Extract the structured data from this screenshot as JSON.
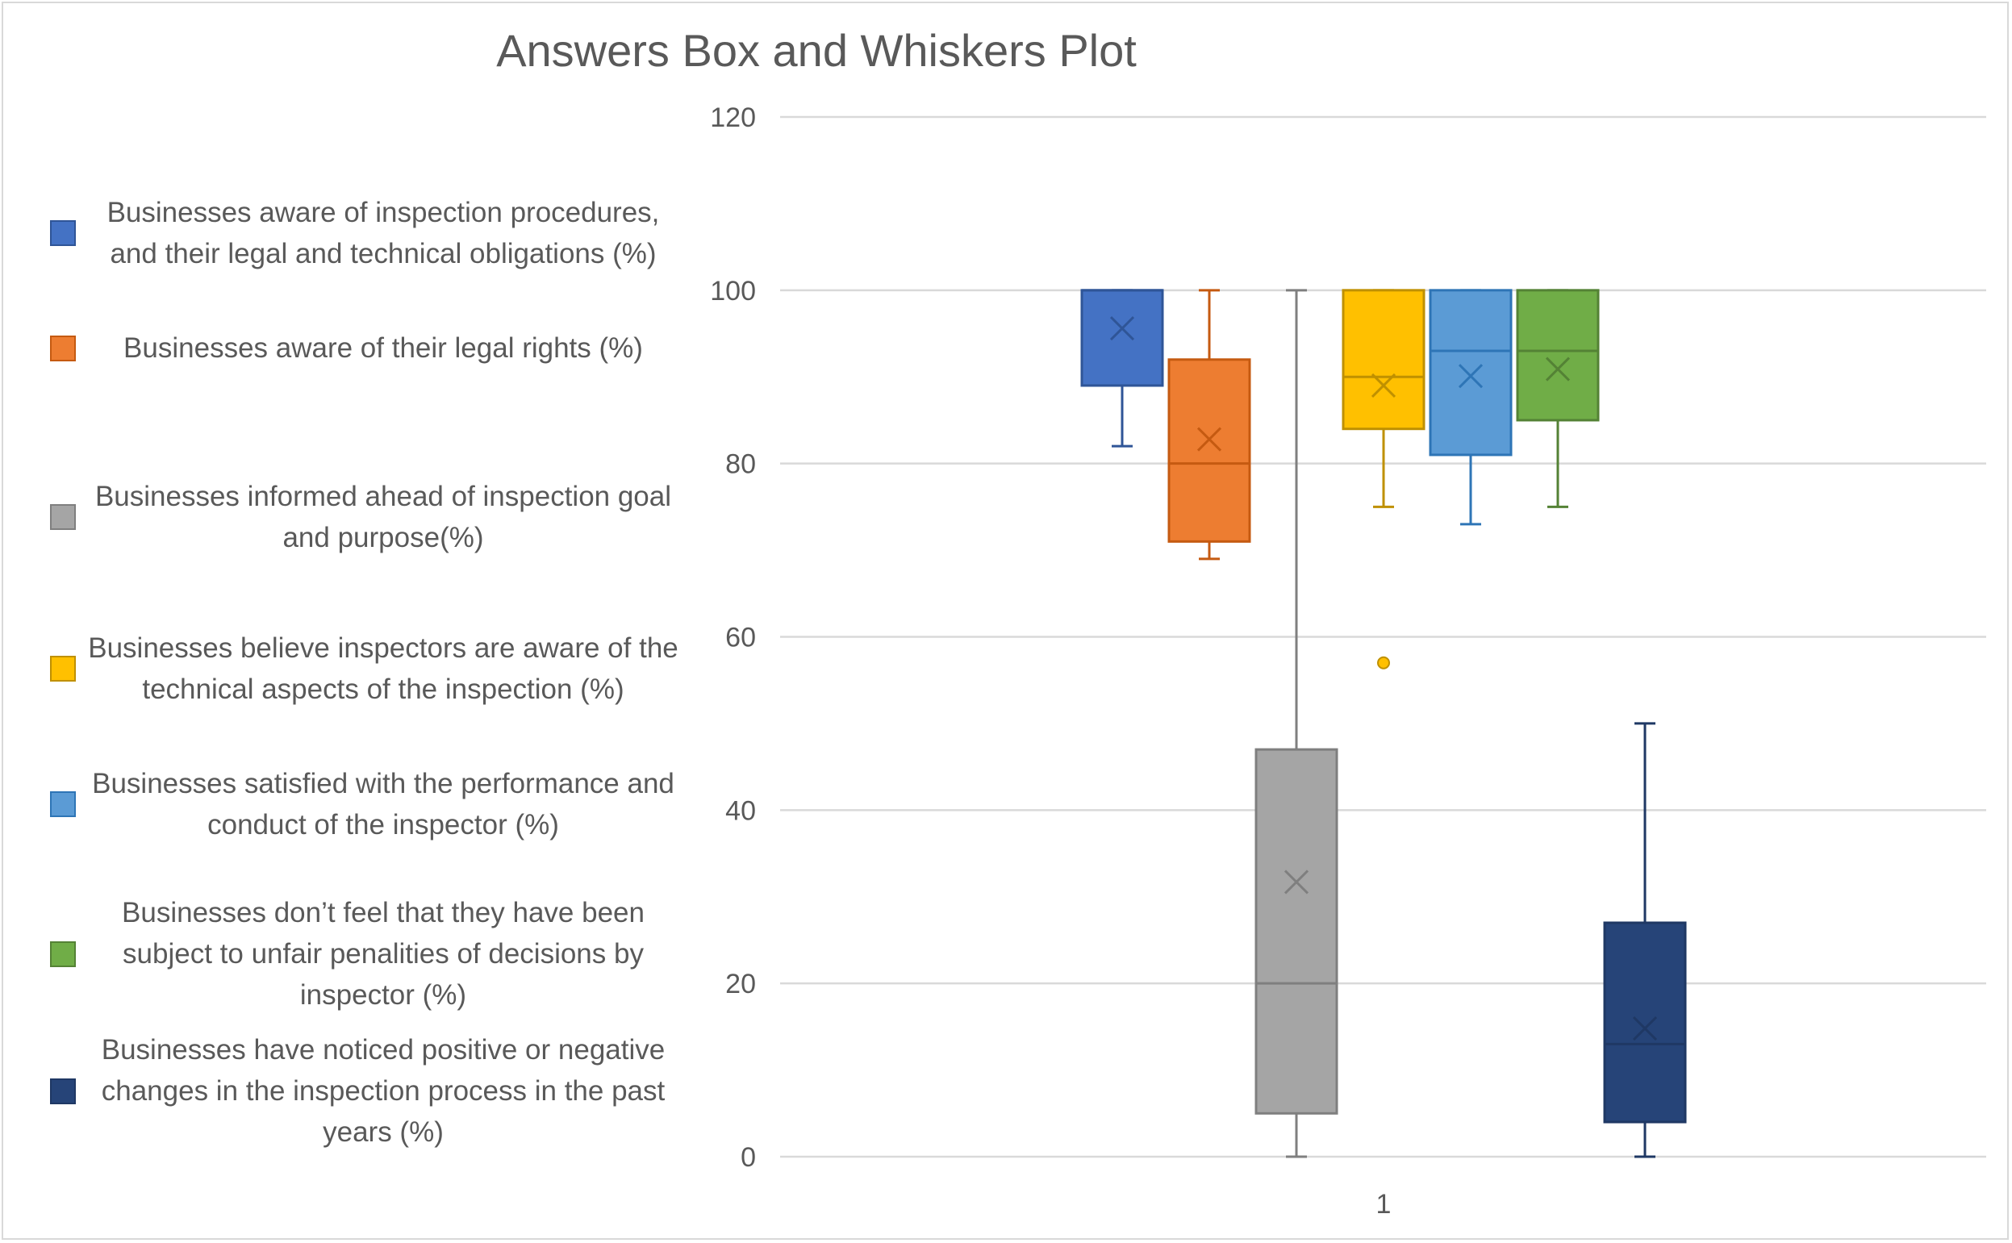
{
  "chart_data": {
    "type": "boxplot",
    "title": "Answers Box and Whiskers Plot",
    "xlabel": "",
    "ylabel": "",
    "ylim": [
      0,
      120
    ],
    "yticks": [
      0,
      20,
      40,
      60,
      80,
      100,
      120
    ],
    "categories": [
      "1"
    ],
    "grid": true,
    "legend_position": "left",
    "series": [
      {
        "name": "Businesses aware of inspection procedures, and their legal and technical obligations (%)",
        "color": "#4472c4",
        "edge": "#2f5597",
        "min": 82,
        "q1": 89,
        "median": 100,
        "q3": 100,
        "max": 100,
        "mean": 95.6,
        "outliers": []
      },
      {
        "name": "Businesses aware of their legal rights (%)",
        "color": "#ed7d31",
        "edge": "#c55a11",
        "min": 69,
        "q1": 71,
        "median": 80,
        "q3": 92,
        "max": 100,
        "mean": 82.8,
        "outliers": []
      },
      {
        "name": "Businesses informed ahead of inspection goal and purpose(%)",
        "color": "#a5a5a5",
        "edge": "#7f7f7f",
        "min": 0,
        "q1": 5,
        "median": 20,
        "q3": 47,
        "max": 100,
        "mean": 31.7,
        "outliers": []
      },
      {
        "name": "Businesses believe inspectors are aware of the technical aspects of the inspection (%)",
        "color": "#ffc000",
        "edge": "#bf9000",
        "min": 75,
        "q1": 84,
        "median": 90,
        "q3": 100,
        "max": 100,
        "mean": 89,
        "outliers": [
          57
        ]
      },
      {
        "name": "Businesses satisfied with the performance and conduct of the inspector (%)",
        "color": "#5b9bd5",
        "edge": "#2e75b6",
        "min": 73,
        "q1": 81,
        "median": 93,
        "q3": 100,
        "max": 100,
        "mean": 90.1,
        "outliers": []
      },
      {
        "name": "Businesses don’t feel that they have been subject to unfair penalities of decisions by inspector (%)",
        "color": "#70ad47",
        "edge": "#548235",
        "min": 75,
        "q1": 85,
        "median": 93,
        "q3": 100,
        "max": 100,
        "mean": 90.9,
        "outliers": []
      },
      {
        "name": "Businesses have noticed positive or negative changes in the inspection process in the past years (%)",
        "color": "#264478",
        "edge": "#1f3864",
        "min": 0,
        "q1": 4,
        "median": 13,
        "q3": 27,
        "max": 50,
        "mean": 14.8,
        "outliers": []
      }
    ]
  }
}
